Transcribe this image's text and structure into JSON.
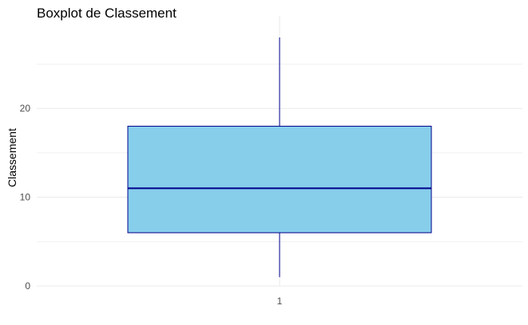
{
  "chart_data": {
    "type": "boxplot",
    "title": "Boxplot de Classement",
    "xlabel": "",
    "ylabel": "Classement",
    "categories": [
      "1"
    ],
    "boxes": [
      {
        "category": "1",
        "min": 1,
        "q1": 6,
        "median": 11,
        "q3": 18,
        "max": 28
      }
    ],
    "ylim": [
      0,
      28
    ],
    "yticks": [
      0,
      10,
      20
    ],
    "grid": true,
    "legend": "none",
    "colors": {
      "box_fill": "#87ceeb",
      "box_stroke": "#00008b",
      "grid": "#ebebeb"
    }
  }
}
